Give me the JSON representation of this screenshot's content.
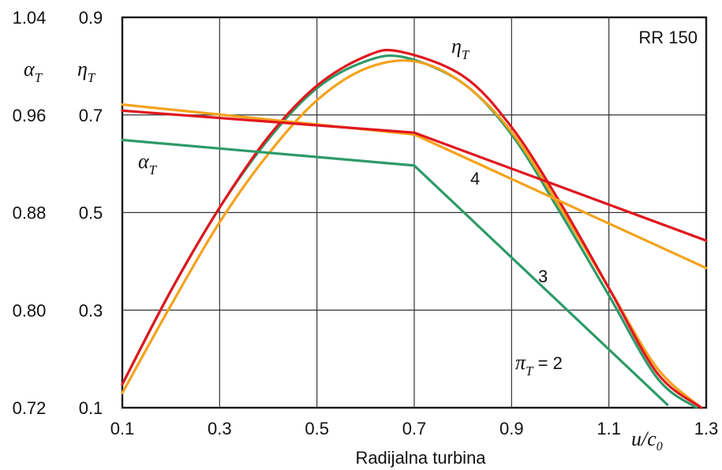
{
  "chart_data": {
    "type": "line",
    "caption": "Radijalna turbina",
    "box_label": "RR 150",
    "xlabel": "u/c₀",
    "x_ticks": [
      "0.1",
      "0.3",
      "0.5",
      "0.7",
      "0.9",
      "1.1",
      "1.3"
    ],
    "xlim": [
      0.1,
      1.3
    ],
    "left_axis": {
      "label": "αT",
      "ticks": [
        "1.04",
        "0.96",
        "0.88",
        "0.80",
        "0.72"
      ],
      "ylim": [
        0.72,
        1.04
      ]
    },
    "right_axis": {
      "label": "ηT",
      "ticks": [
        "0.9",
        "0.7",
        "0.5",
        "0.3",
        "0.1"
      ],
      "ylim": [
        0.1,
        0.9
      ]
    },
    "grid": true,
    "annotations": {
      "eta": "ηT",
      "alpha": "αT",
      "pi2": "πT = 2",
      "three": "3",
      "four": "4"
    },
    "colors": {
      "pi2": "#2e9a68",
      "pi3": "#f4a21c",
      "pi4": "#e0161e"
    },
    "series": [
      {
        "name": "πT = 2",
        "quantity": "ηT",
        "axis": "eta",
        "x": [
          0.1,
          0.2,
          0.3,
          0.4,
          0.5,
          0.6,
          0.68,
          0.8,
          0.9,
          1.0,
          1.1,
          1.2,
          1.28
        ],
        "y": [
          0.148,
          0.34,
          0.51,
          0.65,
          0.755,
          0.81,
          0.818,
          0.765,
          0.66,
          0.5,
          0.33,
          0.16,
          0.1
        ]
      },
      {
        "name": "3",
        "quantity": "ηT",
        "axis": "eta",
        "x": [
          0.1,
          0.2,
          0.3,
          0.4,
          0.5,
          0.6,
          0.7,
          0.8,
          0.9,
          1.0,
          1.1,
          1.2,
          1.29
        ],
        "y": [
          0.13,
          0.31,
          0.48,
          0.62,
          0.73,
          0.795,
          0.81,
          0.765,
          0.665,
          0.51,
          0.345,
          0.18,
          0.1
        ]
      },
      {
        "name": "4",
        "quantity": "ηT",
        "axis": "eta",
        "x": [
          0.1,
          0.2,
          0.3,
          0.4,
          0.5,
          0.6,
          0.67,
          0.8,
          0.9,
          1.0,
          1.1,
          1.2,
          1.29
        ],
        "y": [
          0.148,
          0.34,
          0.51,
          0.655,
          0.76,
          0.82,
          0.83,
          0.78,
          0.675,
          0.52,
          0.345,
          0.17,
          0.1
        ]
      },
      {
        "name": "πT = 2",
        "quantity": "αT",
        "axis": "alpha",
        "x": [
          0.1,
          0.7,
          1.22
        ],
        "y": [
          0.9395,
          0.9185,
          0.7225
        ]
      },
      {
        "name": "3",
        "quantity": "αT",
        "axis": "alpha",
        "x": [
          0.1,
          0.7,
          1.3
        ],
        "y": [
          0.9685,
          0.944,
          0.8345
        ]
      },
      {
        "name": "4",
        "quantity": "αT",
        "axis": "alpha",
        "x": [
          0.1,
          0.7,
          1.3
        ],
        "y": [
          0.9635,
          0.9455,
          0.857
        ]
      }
    ]
  }
}
